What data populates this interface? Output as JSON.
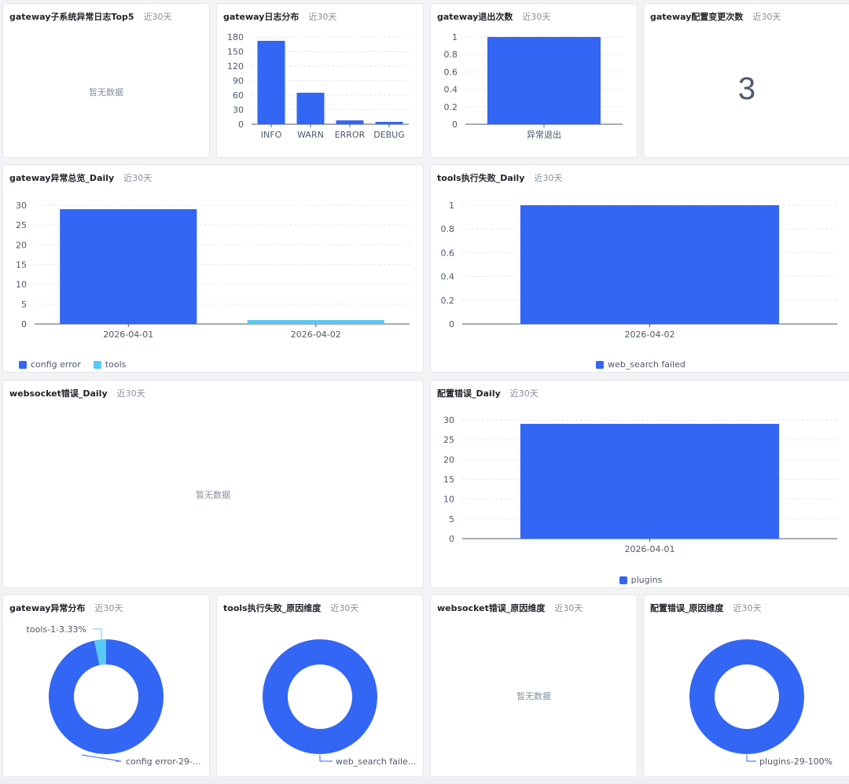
{
  "colors": {
    "primary": "#3366f5",
    "secondary": "#5ac8f5",
    "grid": "#e5e6eb",
    "axis": "#86909c",
    "label": "#4e5969"
  },
  "range_label": "近30天",
  "empty_text": "暂无数据",
  "cards": {
    "c1": {
      "title": "gateway子系统异常日志Top5"
    },
    "c2": {
      "title": "gateway日志分布"
    },
    "c3": {
      "title": "gateway退出次数"
    },
    "c4": {
      "title": "gateway配置变更次数",
      "value": "3"
    },
    "c5": {
      "title": "gateway异常总览_Daily"
    },
    "c6": {
      "title": "tools执行失败_Daily"
    },
    "c7": {
      "title": "websocket错误_Daily"
    },
    "c8": {
      "title": "配置错误_Daily"
    },
    "c9": {
      "title": "gateway异常分布"
    },
    "c10": {
      "title": "tools执行失败_原因维度"
    },
    "c11": {
      "title": "websocket错误_原因维度"
    },
    "c12": {
      "title": "配置错误_原因维度"
    }
  },
  "chart_data": [
    {
      "id": "c2",
      "type": "bar",
      "categories": [
        "INFO",
        "WARN",
        "ERROR",
        "DEBUG"
      ],
      "values": [
        172,
        65,
        8,
        5
      ],
      "yticks": [
        0,
        30,
        60,
        90,
        120,
        150,
        180
      ],
      "ylim": [
        0,
        180
      ],
      "grid": true
    },
    {
      "id": "c3",
      "type": "bar",
      "categories": [
        "异常退出"
      ],
      "values": [
        1
      ],
      "yticks": [
        0,
        0.2,
        0.4,
        0.6,
        0.8,
        1
      ],
      "ylim": [
        0,
        1
      ],
      "grid": true
    },
    {
      "id": "c5",
      "type": "bar",
      "categories": [
        "2026-04-01",
        "2026-04-02"
      ],
      "series": [
        {
          "name": "config error",
          "values": [
            29,
            0
          ],
          "color": "#3366f5"
        },
        {
          "name": "tools",
          "values": [
            0,
            1
          ],
          "color": "#5ac8f5"
        }
      ],
      "yticks": [
        0,
        5,
        10,
        15,
        20,
        25,
        30
      ],
      "ylim": [
        0,
        30
      ],
      "grid": true,
      "legend": "bottom-left"
    },
    {
      "id": "c6",
      "type": "bar",
      "categories": [
        "2026-04-02"
      ],
      "series": [
        {
          "name": "web_search failed",
          "values": [
            1
          ],
          "color": "#3366f5"
        }
      ],
      "yticks": [
        0,
        0.2,
        0.4,
        0.6,
        0.8,
        1
      ],
      "ylim": [
        0,
        1
      ],
      "grid": true,
      "legend": "bottom-center"
    },
    {
      "id": "c8",
      "type": "bar",
      "categories": [
        "2026-04-01"
      ],
      "series": [
        {
          "name": "plugins",
          "values": [
            29
          ],
          "color": "#3366f5"
        }
      ],
      "yticks": [
        0,
        5,
        10,
        15,
        20,
        25,
        30
      ],
      "ylim": [
        0,
        30
      ],
      "grid": true,
      "legend": "bottom-center"
    },
    {
      "id": "c9",
      "type": "pie",
      "slices": [
        {
          "label": "config error-29-...",
          "value": 29,
          "color": "#3366f5"
        },
        {
          "label": "tools-1-3.33%",
          "value": 1,
          "color": "#5ac8f5"
        }
      ]
    },
    {
      "id": "c10",
      "type": "pie",
      "slices": [
        {
          "label": "web_search faile...",
          "value": 1,
          "color": "#3366f5"
        }
      ]
    },
    {
      "id": "c12",
      "type": "pie",
      "slices": [
        {
          "label": "plugins-29-100%",
          "value": 29,
          "color": "#3366f5"
        }
      ]
    }
  ]
}
